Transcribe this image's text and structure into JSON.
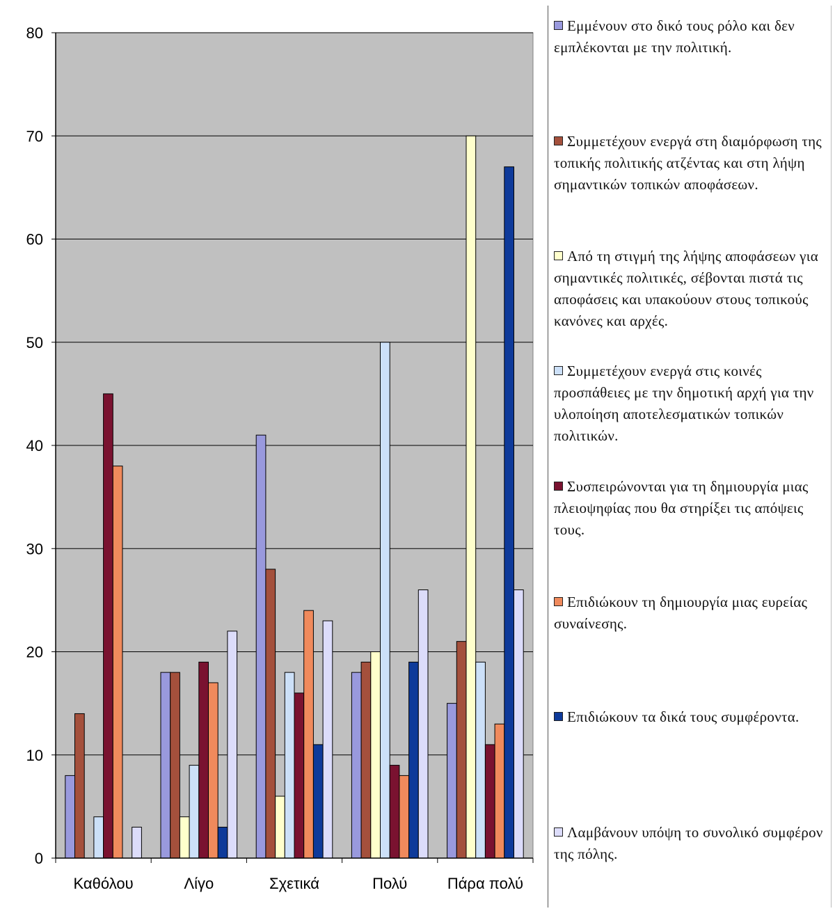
{
  "chart_data": {
    "type": "bar",
    "categories": [
      "Καθόλου",
      "Λίγο",
      "Σχετικά",
      "Πολύ",
      "Πάρα πολύ"
    ],
    "ylim": [
      0,
      80
    ],
    "yticks": [
      0,
      10,
      20,
      30,
      40,
      50,
      60,
      70,
      80
    ],
    "grid": true,
    "legend_position": "right",
    "series": [
      {
        "name": "Εμμένουν στο δικό τους ρόλο και δεν εμπλέκονται με την πολιτική.",
        "color": "#9999dd",
        "values": [
          8,
          18,
          41,
          18,
          15
        ]
      },
      {
        "name": "Συμμετέχουν ενεργά στη διαμόρφωση της τοπικής πολιτικής ατζέντας και στη λήψη σημαντικών τοπικών αποφάσεων.",
        "color": "#a4503c",
        "values": [
          14,
          18,
          28,
          19,
          21
        ]
      },
      {
        "name": "Από τη στιγμή της λήψης αποφάσεων για σημαντικές πολιτικές, σέβονται πιστά τις αποφάσεις και υπακούουν στους τοπικούς κανόνες και αρχές.",
        "color": "#ffffcc",
        "values": [
          0,
          4,
          6,
          20,
          70
        ]
      },
      {
        "name": "Συμμετέχουν ενεργά στις κοινές προσπάθειες με την δημοτική αρχή για την υλοποίηση αποτελεσματικών τοπικών πολιτικών.",
        "color": "#cce0f8",
        "values": [
          4,
          9,
          18,
          50,
          19
        ]
      },
      {
        "name": "Συσπειρώνονται για τη δημιουργία μιας πλειοψηφίας που θα στηρίξει τις απόψεις τους.",
        "color": "#7a1230",
        "values": [
          45,
          19,
          16,
          9,
          11
        ]
      },
      {
        "name": "Επιδιώκουν τη δημιουργία μιας ευρείας συναίνεσης.",
        "color": "#f08a5c",
        "values": [
          38,
          17,
          24,
          8,
          13
        ]
      },
      {
        "name": "Επιδιώκουν τα δικά τους συμφέροντα.",
        "color": "#0e3a9a",
        "values": [
          0,
          3,
          11,
          19,
          67
        ]
      },
      {
        "name": "Λαμβάνουν υπόψη το συνολικό συμφέρον της πόλης.",
        "color": "#dcdcfa",
        "values": [
          3,
          22,
          23,
          26,
          26
        ]
      }
    ]
  }
}
